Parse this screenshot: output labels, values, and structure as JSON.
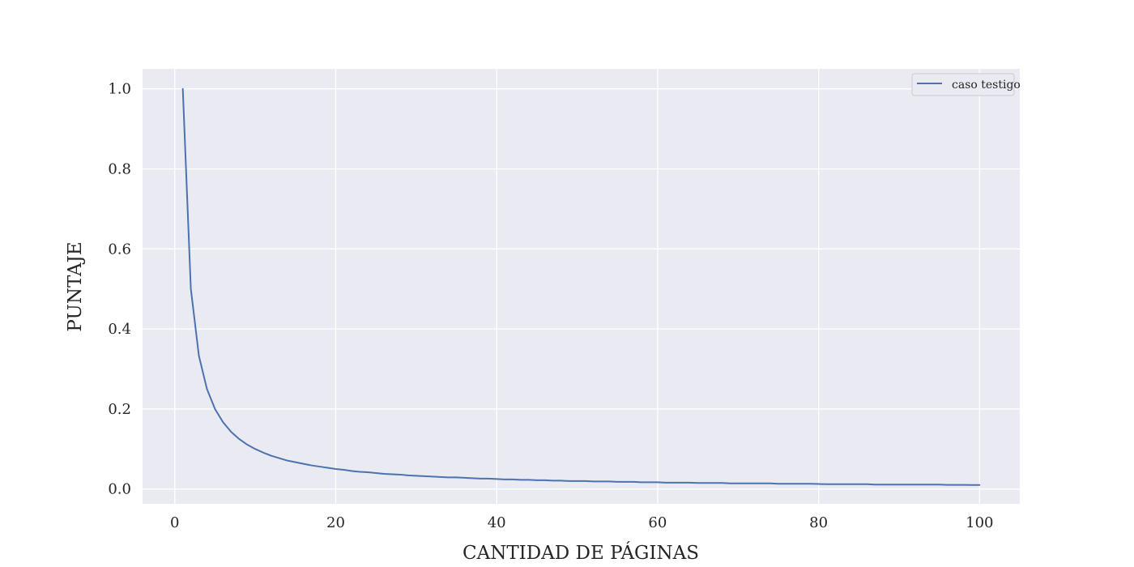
{
  "chart_data": {
    "type": "line",
    "xlabel": "CANTIDAD DE PÁGINAS",
    "ylabel": "PUNTAJE",
    "xlim": [
      -4,
      105
    ],
    "ylim": [
      -0.037,
      1.05
    ],
    "xticks": [
      0,
      20,
      40,
      60,
      80,
      100
    ],
    "yticks": [
      0.0,
      0.2,
      0.4,
      0.6,
      0.8,
      1.0
    ],
    "xtick_labels": [
      "0",
      "20",
      "40",
      "60",
      "80",
      "100"
    ],
    "ytick_labels": [
      "0.0",
      "0.2",
      "0.4",
      "0.6",
      "0.8",
      "1.0"
    ],
    "grid": true,
    "legend_position": "top-right",
    "series": [
      {
        "name": "caso testigo",
        "color": "#4c72b0",
        "x": [
          1,
          2,
          3,
          4,
          5,
          6,
          7,
          8,
          9,
          10,
          11,
          12,
          13,
          14,
          15,
          16,
          17,
          18,
          19,
          20,
          21,
          22,
          23,
          24,
          25,
          26,
          27,
          28,
          29,
          30,
          31,
          32,
          33,
          34,
          35,
          36,
          37,
          38,
          39,
          40,
          41,
          42,
          43,
          44,
          45,
          46,
          47,
          48,
          49,
          50,
          51,
          52,
          53,
          54,
          55,
          56,
          57,
          58,
          59,
          60,
          61,
          62,
          63,
          64,
          65,
          66,
          67,
          68,
          69,
          70,
          71,
          72,
          73,
          74,
          75,
          76,
          77,
          78,
          79,
          80,
          81,
          82,
          83,
          84,
          85,
          86,
          87,
          88,
          89,
          90,
          91,
          92,
          93,
          94,
          95,
          96,
          97,
          98,
          99,
          100
        ],
        "y": [
          1.0,
          0.5,
          0.333,
          0.25,
          0.2,
          0.167,
          0.143,
          0.125,
          0.111,
          0.1,
          0.091,
          0.083,
          0.077,
          0.071,
          0.067,
          0.063,
          0.059,
          0.056,
          0.053,
          0.05,
          0.048,
          0.045,
          0.043,
          0.042,
          0.04,
          0.038,
          0.037,
          0.036,
          0.034,
          0.033,
          0.032,
          0.031,
          0.03,
          0.029,
          0.029,
          0.028,
          0.027,
          0.026,
          0.026,
          0.025,
          0.024,
          0.024,
          0.023,
          0.023,
          0.022,
          0.022,
          0.021,
          0.021,
          0.02,
          0.02,
          0.02,
          0.019,
          0.019,
          0.019,
          0.018,
          0.018,
          0.018,
          0.017,
          0.017,
          0.017,
          0.016,
          0.016,
          0.016,
          0.016,
          0.015,
          0.015,
          0.015,
          0.015,
          0.014,
          0.014,
          0.014,
          0.014,
          0.014,
          0.014,
          0.013,
          0.013,
          0.013,
          0.013,
          0.013,
          0.0125,
          0.012,
          0.012,
          0.012,
          0.012,
          0.012,
          0.012,
          0.011,
          0.011,
          0.011,
          0.011,
          0.011,
          0.011,
          0.011,
          0.011,
          0.011,
          0.0104,
          0.0103,
          0.0102,
          0.0101,
          0.01
        ]
      }
    ]
  }
}
